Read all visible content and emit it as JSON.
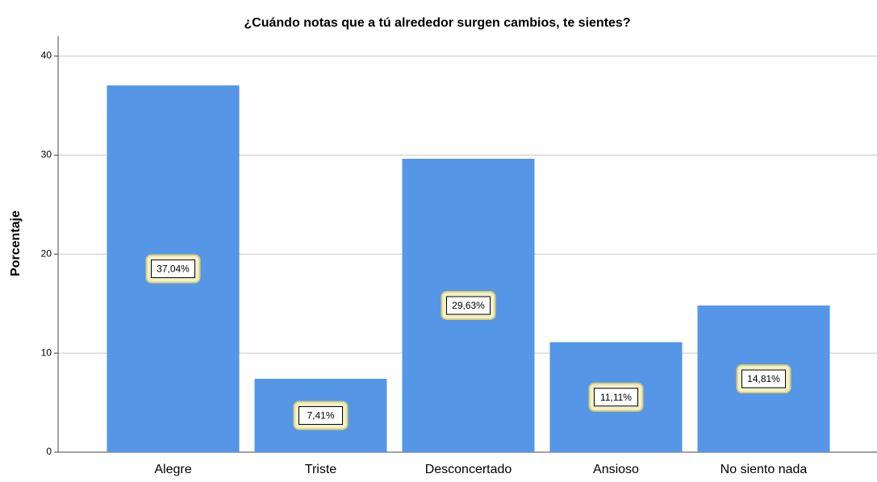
{
  "chart_data": {
    "type": "bar",
    "title": "¿Cuándo notas que a tú alrededor surgen cambios, te sientes?",
    "y_label": "Porcentaje",
    "categories": [
      "Alegre",
      "Triste",
      "Desconcertado",
      "Ansioso",
      "No siento nada"
    ],
    "values": [
      37.04,
      7.41,
      29.63,
      11.11,
      14.81
    ],
    "value_labels": [
      "37,04%",
      "7,41%",
      "29,63%",
      "11,11%",
      "14,81%"
    ],
    "color": "#5596e6",
    "ylim": [
      0,
      42
    ],
    "yticks": [
      0,
      10,
      20,
      30,
      40
    ],
    "grid": true
  }
}
